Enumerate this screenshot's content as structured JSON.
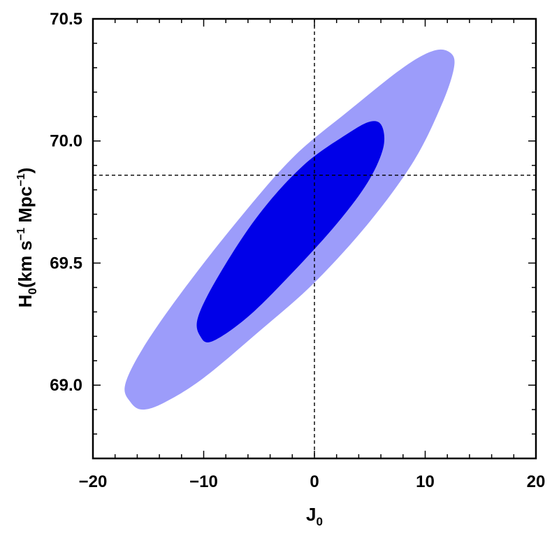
{
  "chart_data": {
    "type": "contour",
    "xlabel": "J",
    "xlabel_subscript": "0",
    "ylabel_symbol": "H",
    "ylabel_subscript": "0",
    "ylabel_units": {
      "open": "(km s",
      "exp1": "−1",
      "mid": " Mpc",
      "exp2": "−1",
      "close": ")"
    },
    "xlim": [
      -20,
      20
    ],
    "ylim": [
      68.7,
      70.5
    ],
    "x_ticks": [
      -20,
      -10,
      0,
      10,
      20
    ],
    "x_tick_labels": [
      "−20",
      "−10",
      "0",
      "10",
      "20"
    ],
    "y_ticks": [
      69.0,
      69.5,
      70.0,
      70.5
    ],
    "y_tick_labels": [
      "69.0",
      "69.5",
      "70.0",
      "70.5"
    ],
    "minor_ticks_per_major": 5,
    "reference_lines": {
      "x": 0,
      "y": 69.86,
      "style": "dashed",
      "color": "#000000"
    },
    "regions": [
      {
        "level": "2-sigma",
        "color": "#9c9cfa",
        "boundary": [
          [
            -16.6,
            68.93
          ],
          [
            -15.5,
            68.9
          ],
          [
            -13.5,
            68.93
          ],
          [
            -10.0,
            69.03
          ],
          [
            -5.0,
            69.22
          ],
          [
            0.0,
            69.42
          ],
          [
            5.0,
            69.67
          ],
          [
            9.0,
            69.92
          ],
          [
            11.5,
            70.15
          ],
          [
            12.6,
            70.3
          ],
          [
            12.3,
            70.36
          ],
          [
            10.8,
            70.37
          ],
          [
            8.0,
            70.3
          ],
          [
            3.0,
            70.12
          ],
          [
            -2.0,
            69.93
          ],
          [
            -7.0,
            69.67
          ],
          [
            -12.0,
            69.38
          ],
          [
            -15.5,
            69.15
          ],
          [
            -17.1,
            69.0
          ]
        ]
      },
      {
        "level": "1-sigma",
        "color": "#0000e8",
        "boundary": [
          [
            -10.3,
            69.2
          ],
          [
            -9.2,
            69.18
          ],
          [
            -6.0,
            69.28
          ],
          [
            -2.0,
            69.46
          ],
          [
            2.0,
            69.66
          ],
          [
            4.8,
            69.83
          ],
          [
            6.2,
            69.97
          ],
          [
            6.1,
            70.06
          ],
          [
            5.1,
            70.08
          ],
          [
            3.0,
            70.03
          ],
          [
            -1.0,
            69.9
          ],
          [
            -5.0,
            69.7
          ],
          [
            -8.5,
            69.46
          ],
          [
            -10.5,
            69.28
          ]
        ]
      }
    ]
  }
}
